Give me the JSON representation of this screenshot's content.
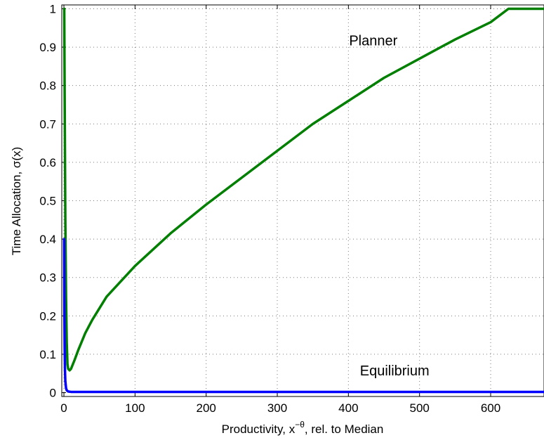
{
  "chart_data": {
    "type": "line",
    "xlabel": {
      "before": "Productivity, x",
      "superscript": "−θ",
      "after": ", rel. to Median"
    },
    "ylabel": "Time Allocation, σ(x)",
    "xlim": [
      -3,
      675
    ],
    "ylim": [
      -0.01,
      1.01
    ],
    "xticks": [
      0,
      100,
      200,
      300,
      400,
      500,
      600
    ],
    "yticks": [
      0,
      0.1,
      0.2,
      0.3,
      0.4,
      0.5,
      0.6,
      0.7,
      0.8,
      0.9,
      1
    ],
    "xtick_labels": [
      "0",
      "100",
      "200",
      "300",
      "400",
      "500",
      "600"
    ],
    "ytick_labels": [
      "0",
      "0.1",
      "0.2",
      "0.3",
      "0.4",
      "0.5",
      "0.6",
      "0.7",
      "0.8",
      "0.9",
      "1"
    ],
    "grid": true,
    "series": [
      {
        "name": "Planner",
        "color": "#007f00",
        "x": [
          0.5,
          1,
          2,
          3,
          4,
          5,
          6,
          8,
          10,
          15,
          20,
          30,
          40,
          60,
          80,
          100,
          150,
          200,
          250,
          300,
          350,
          400,
          450,
          500,
          550,
          600,
          625,
          650,
          675
        ],
        "y": [
          1.0,
          0.8,
          0.45,
          0.25,
          0.13,
          0.075,
          0.062,
          0.058,
          0.062,
          0.085,
          0.11,
          0.155,
          0.19,
          0.25,
          0.29,
          0.33,
          0.415,
          0.49,
          0.56,
          0.63,
          0.7,
          0.76,
          0.82,
          0.87,
          0.92,
          0.965,
          1.0,
          1.0,
          1.0
        ]
      },
      {
        "name": "Equilibrium",
        "color": "#0000ff",
        "x": [
          0.3,
          0.6,
          1,
          1.5,
          2,
          3,
          4,
          6,
          10,
          100,
          300,
          675
        ],
        "y": [
          0.4,
          0.22,
          0.12,
          0.06,
          0.03,
          0.012,
          0.006,
          0.003,
          0.002,
          0.002,
          0.002,
          0.002
        ]
      }
    ],
    "annotations": [
      {
        "text": "Planner",
        "x": 435,
        "y": 0.905
      },
      {
        "text": "Equilibrium",
        "x": 465,
        "y": 0.045
      }
    ]
  }
}
